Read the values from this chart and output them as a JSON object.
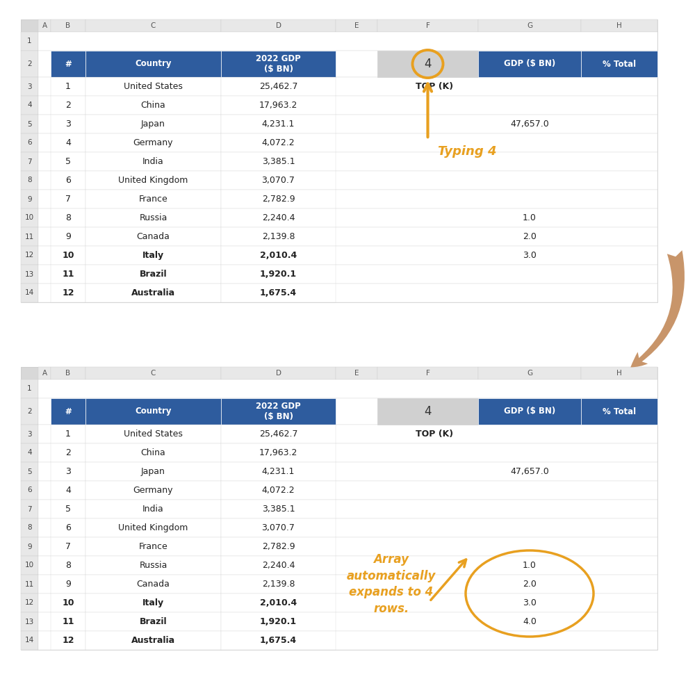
{
  "background_color": "#ffffff",
  "col_header_bg": "#e8e8e8",
  "row_header_bg": "#e8e8e8",
  "border_color": "#cccccc",
  "table_header_bg": "#2E5C9E",
  "table_header_text": "#ffffff",
  "k_cell_bg": "#d0d0d0",
  "col_letters": [
    "A",
    "B",
    "C",
    "D",
    "E",
    "F",
    "G",
    "H"
  ],
  "row_numbers": [
    "1",
    "2",
    "3",
    "4",
    "5",
    "6",
    "7",
    "8",
    "9",
    "10",
    "11",
    "12",
    "13",
    "14"
  ],
  "main_table_data": [
    [
      1,
      "United States",
      "25,462.7"
    ],
    [
      2,
      "China",
      "17,963.2"
    ],
    [
      3,
      "Japan",
      "4,231.1"
    ],
    [
      4,
      "Germany",
      "4,072.2"
    ],
    [
      5,
      "India",
      "3,385.1"
    ],
    [
      6,
      "United Kingdom",
      "3,070.7"
    ],
    [
      7,
      "France",
      "2,782.9"
    ],
    [
      8,
      "Russia",
      "2,240.4"
    ],
    [
      9,
      "Canada",
      "2,139.8"
    ],
    [
      10,
      "Italy",
      "2,010.4"
    ],
    [
      11,
      "Brazil",
      "1,920.1"
    ],
    [
      12,
      "Australia",
      "1,675.4"
    ]
  ],
  "k_value": "4",
  "top_k_label": "TOP (K)",
  "total_gdp": "47,657.0",
  "array_values_top": [
    "1.0",
    "2.0",
    "3.0"
  ],
  "array_values_bottom": [
    "1.0",
    "2.0",
    "3.0",
    "4.0"
  ],
  "annotation_top": "Typing 4",
  "annotation_bottom": "Array\nautomatically\nexpands to 4\nrows.",
  "gold_color": "#E8A020",
  "tan_color": "#C8956A"
}
